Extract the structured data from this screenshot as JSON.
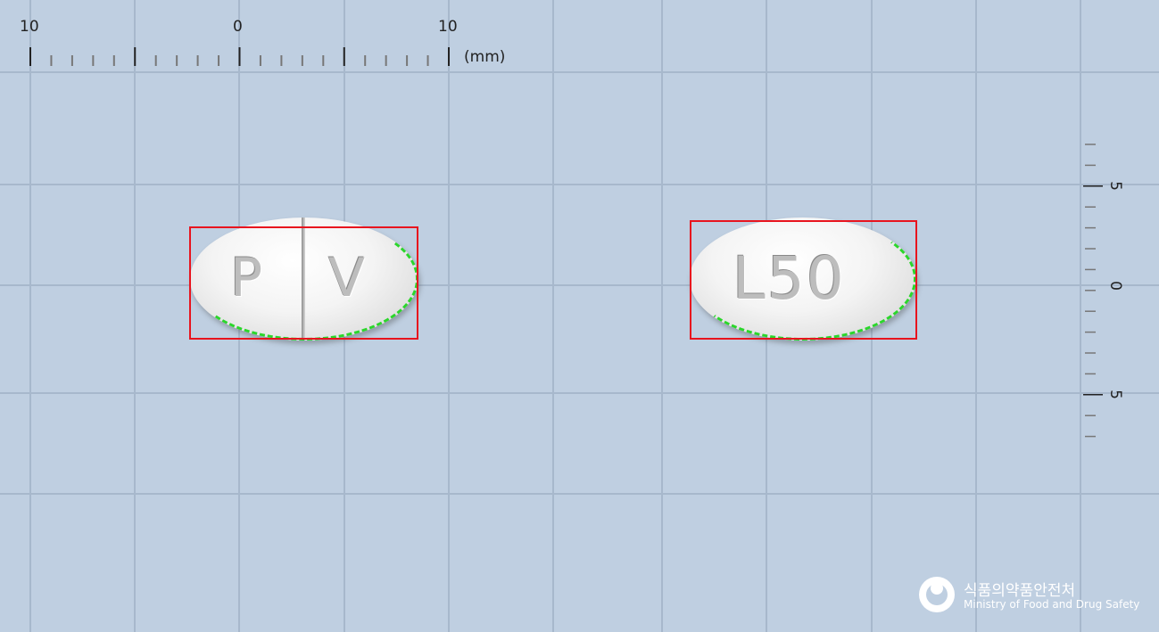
{
  "colors": {
    "background": "#bfcfe1",
    "grid_line": "#a7b8cc",
    "bounding_box": "#e8141e",
    "contour": "#2bd62b"
  },
  "ruler": {
    "horizontal_labels": [
      "10",
      "0",
      "10"
    ],
    "unit": "(mm)",
    "vertical_labels": [
      "5",
      "0",
      "5"
    ]
  },
  "pills": [
    {
      "imprint_left": "P",
      "imprint_right": "V",
      "score_line": true
    },
    {
      "imprint": "L50",
      "score_line": false
    }
  ],
  "logo": {
    "icon": "ministry-swirl-icon",
    "name_korean": "식품의약품안전처",
    "name_english": "Ministry of Food and Drug Safety"
  }
}
